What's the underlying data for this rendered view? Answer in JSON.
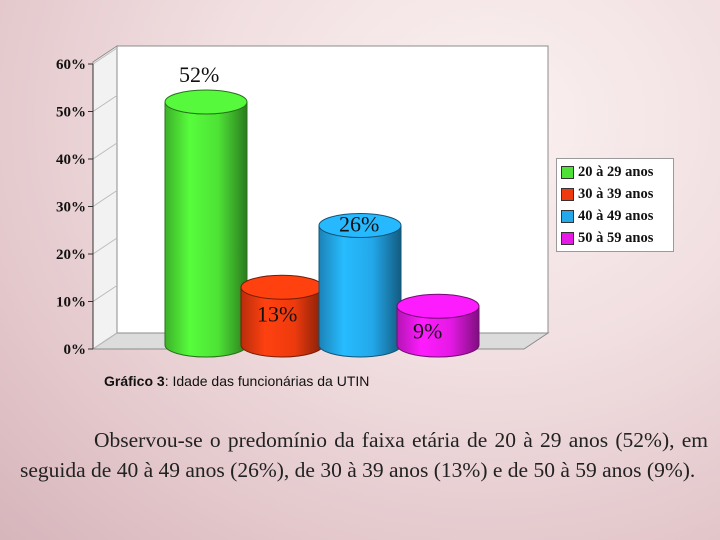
{
  "chart_data": {
    "type": "bar",
    "style": "3d-cylinder",
    "categories": [
      "20 à 29 anos",
      "30 à 39 anos",
      "40 à 49 anos",
      "50 à 59 anos"
    ],
    "values": [
      52,
      13,
      26,
      9
    ],
    "value_labels": [
      "52%",
      "13%",
      "26%",
      "9%"
    ],
    "colors": [
      "#4ee236",
      "#ee3a0e",
      "#23a8ea",
      "#e619e6"
    ],
    "ylim": [
      0,
      60
    ],
    "ytick_values": [
      0,
      10,
      20,
      30,
      40,
      50,
      60
    ],
    "ytick_labels": [
      "0%",
      "10%",
      "20%",
      "30%",
      "40%",
      "50%",
      "60%"
    ],
    "legend_position": "right",
    "grid": false
  },
  "legend": {
    "items": [
      {
        "label": "20 à 29 anos",
        "color": "#4ee236"
      },
      {
        "label": "30 à 39 anos",
        "color": "#ee3a0e"
      },
      {
        "label": "40 à 49 anos",
        "color": "#23a8ea"
      },
      {
        "label": "50 à 59 anos",
        "color": "#e619e6"
      }
    ]
  },
  "caption": {
    "prefix": "Gráfico 3",
    "text": ": Idade das funcionárias da UTIN"
  },
  "paragraph": "Observou-se o predomínio da faixa etária de 20 à 29 anos (52%), em seguida de 40 à 49 anos (26%), de 30 à 39 anos (13%) e de 50 à 59 anos (9%)."
}
